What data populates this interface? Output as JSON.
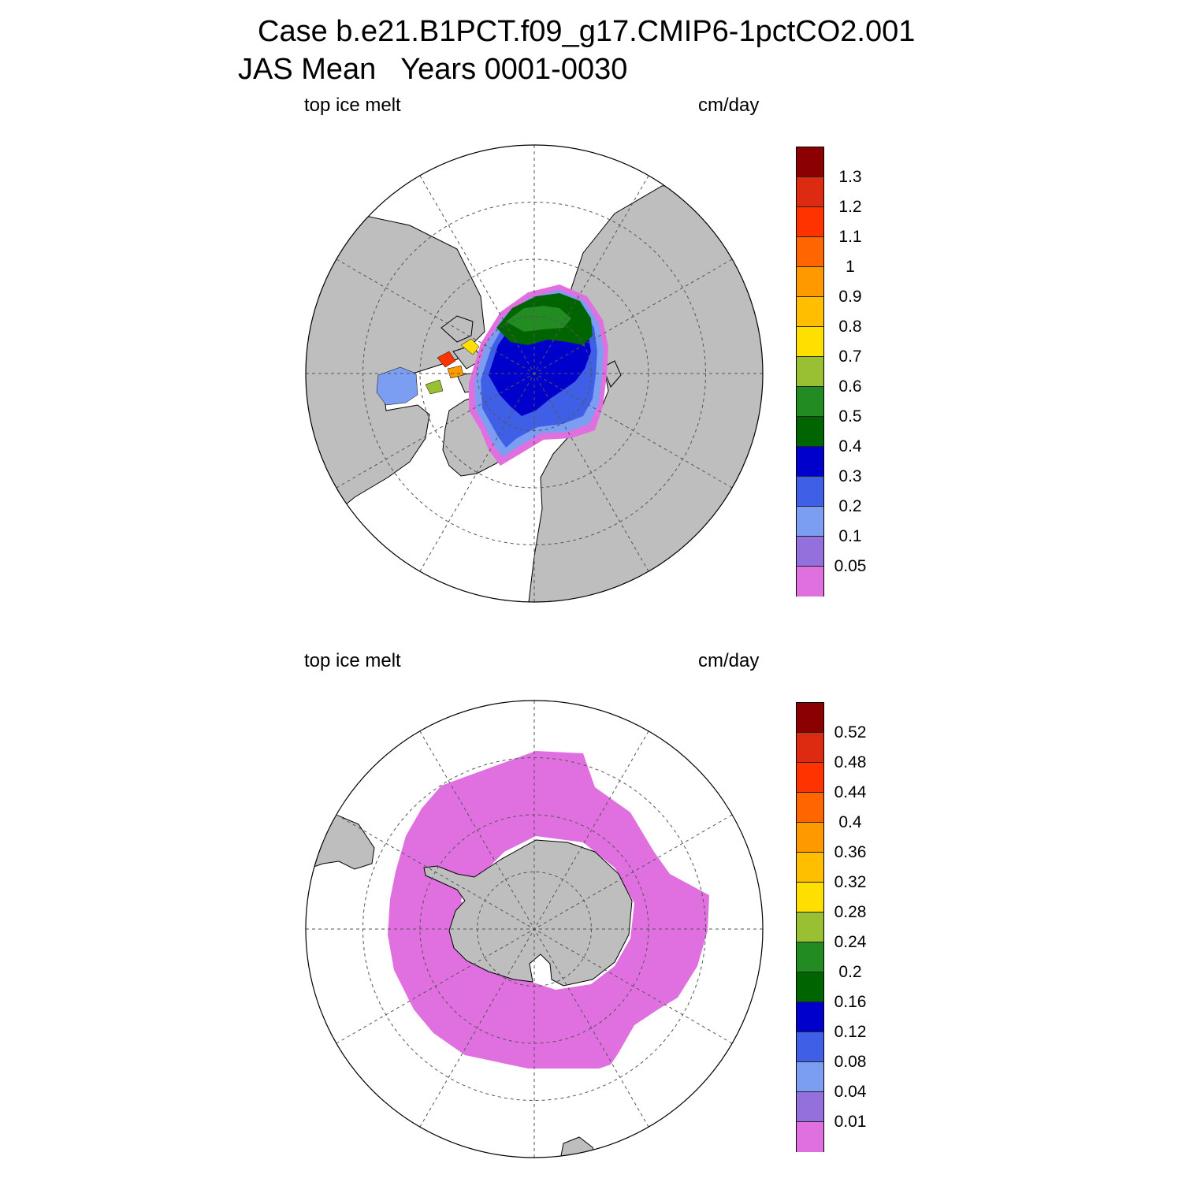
{
  "title": {
    "line1": "Case b.e21.B1PCT.f09_g17.CMIP6-1pctCO2.001",
    "line2": "JAS Mean   Years 0001-0030"
  },
  "panels": [
    {
      "id": "north",
      "hemisphere": "NH",
      "variable": "top ice melt",
      "units": "cm/day",
      "colorbar_labels": [
        "1.3",
        "1.2",
        "1.1",
        "1",
        "0.9",
        "0.8",
        "0.7",
        "0.6",
        "0.5",
        "0.4",
        "0.3",
        "0.2",
        "0.1",
        "0.05"
      ]
    },
    {
      "id": "south",
      "hemisphere": "SH",
      "variable": "top ice melt",
      "units": "cm/day",
      "colorbar_labels": [
        "0.52",
        "0.48",
        "0.44",
        "0.4",
        "0.36",
        "0.32",
        "0.28",
        "0.24",
        "0.2",
        "0.16",
        "0.12",
        "0.08",
        "0.04",
        "0.01"
      ]
    }
  ],
  "colors": {
    "palette_top_to_bottom": [
      "#8b0000",
      "#dc2b10",
      "#ff3300",
      "#ff6600",
      "#ff9900",
      "#ffbf00",
      "#ffdf00",
      "#99bf33",
      "#228b22",
      "#006400",
      "#0000cd",
      "#3f60e6",
      "#7b9ef2",
      "#9370db",
      "#e070e0"
    ],
    "land": "#bebebe",
    "ocean": "#ffffff"
  }
}
